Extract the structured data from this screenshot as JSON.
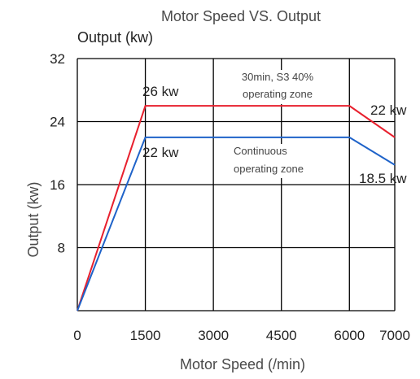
{
  "chart_data": {
    "type": "line",
    "title": "Motor Speed VS. Output",
    "unit_label": "Output (kw)",
    "xlabel": "Motor Speed (/min)",
    "ylabel": "Output (kw)",
    "xlim": [
      0,
      7000
    ],
    "ylim": [
      0,
      32
    ],
    "x_ticks": [
      0,
      1500,
      3000,
      4500,
      6000,
      7000
    ],
    "x_tick_labels": [
      "0",
      "1500",
      "3000",
      "4500",
      "6000",
      "7000"
    ],
    "y_ticks": [
      8,
      16,
      24,
      32
    ],
    "y_tick_labels": [
      "8",
      "16",
      "24",
      "32"
    ],
    "grid": true,
    "series": [
      {
        "name": "30min, S3 40% operating zone",
        "color": "#e8202e",
        "x": [
          0,
          1500,
          6000,
          7000
        ],
        "y": [
          0,
          26,
          26,
          22
        ]
      },
      {
        "name": "Continuous operating zone",
        "color": "#1f63c9",
        "x": [
          0,
          1500,
          6000,
          7000
        ],
        "y": [
          0,
          22,
          22,
          18.5
        ]
      }
    ],
    "annotations": {
      "peak_start": "26 kw",
      "cont_start": "22 kw",
      "peak_end": "22 kw",
      "cont_end": "18.5 kw",
      "zone_s3_line1": "30min, S3 40%",
      "zone_s3_line2": "operating zone",
      "zone_cont_line1": "Continuous",
      "zone_cont_line2": "operating zone"
    }
  }
}
